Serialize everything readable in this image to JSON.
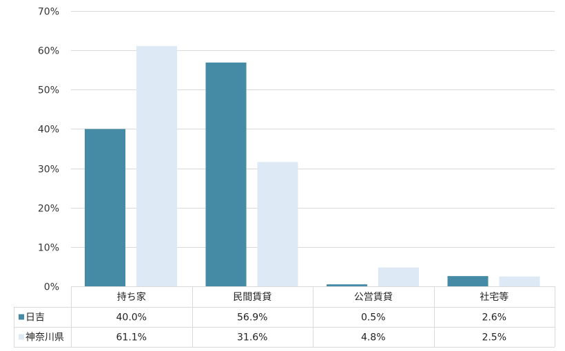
{
  "chart_data": {
    "type": "bar",
    "categories": [
      "持ち家",
      "民間賃貸",
      "公営賃貸",
      "社宅等"
    ],
    "series": [
      {
        "name": "日吉",
        "values": [
          40.0,
          56.9,
          0.5,
          2.6
        ],
        "color": "#468ba5"
      },
      {
        "name": "神奈川県",
        "values": [
          61.1,
          31.6,
          4.8,
          2.5
        ],
        "color": "#dde9f5"
      }
    ],
    "data_table": {
      "rows": [
        {
          "series": "日吉",
          "cells": [
            "40.0%",
            "56.9%",
            "0.5%",
            "2.6%"
          ]
        },
        {
          "series": "神奈川県",
          "cells": [
            "61.1%",
            "31.6%",
            "4.8%",
            "2.5%"
          ]
        }
      ]
    },
    "y_ticks": [
      "0%",
      "10%",
      "20%",
      "30%",
      "40%",
      "50%",
      "60%",
      "70%"
    ],
    "ylim": [
      0,
      70
    ],
    "grid": true,
    "gridline_color": "#d9d9d9",
    "legend_placement": "data-table-left"
  }
}
